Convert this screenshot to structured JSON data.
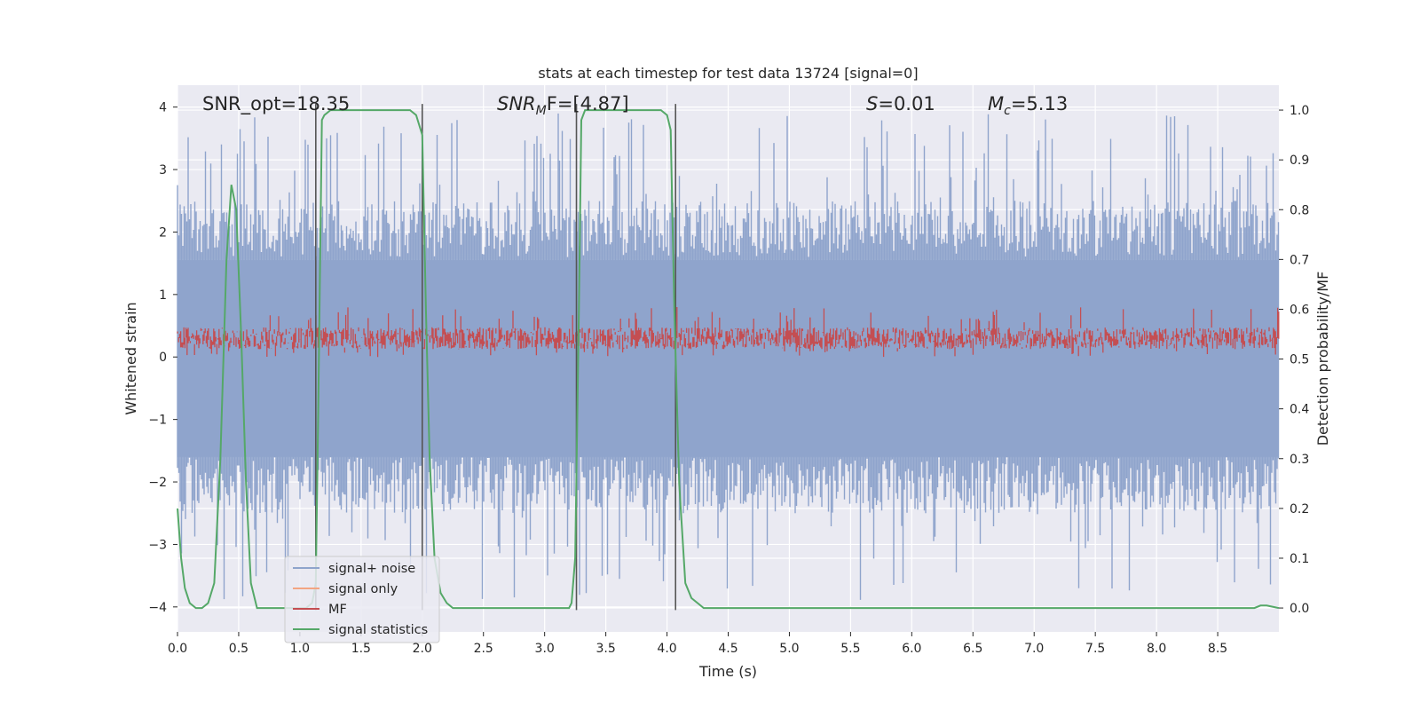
{
  "chart_data": {
    "type": "line",
    "title": "stats at each timestep for test data 13724 [signal=0]",
    "xlabel": "Time (s)",
    "ylabel_left": "Whitened strain",
    "ylabel_right": "Detection probability/MF",
    "xlim": [
      0.0,
      9.0
    ],
    "ylim_left": [
      -4.4,
      4.35
    ],
    "ylim_right": [
      -0.048,
      1.05
    ],
    "x_ticks": [
      "0.0",
      "0.5",
      "1.0",
      "1.5",
      "2.0",
      "2.5",
      "3.0",
      "3.5",
      "4.0",
      "4.5",
      "5.0",
      "5.5",
      "6.0",
      "6.5",
      "7.0",
      "7.5",
      "8.0",
      "8.5"
    ],
    "y_ticks_left": [
      "−4",
      "−3",
      "−2",
      "−1",
      "0",
      "1",
      "2",
      "3",
      "4"
    ],
    "y_ticks_right": [
      "0.0",
      "0.1",
      "0.2",
      "0.3",
      "0.4",
      "0.5",
      "0.6",
      "0.7",
      "0.8",
      "0.9",
      "1.0"
    ],
    "grid": true,
    "annotations": {
      "snr_opt": "SNR_opt=18.35",
      "snr_mf_prefix": "SNR",
      "snr_mf_sub": "M",
      "snr_mf_suffix": "F=[4.87]",
      "s_prefix": "S",
      "s_suffix": "=0.01",
      "mc_prefix": "M",
      "mc_sub": "c",
      "mc_suffix": "=5.13"
    },
    "vertical_lines": [
      1.13,
      2.0,
      3.26,
      4.07
    ],
    "series": [
      {
        "name": "signal+ noise",
        "color": "#8fa4cc",
        "axis": "left",
        "summary": "noise band roughly -2.5 to 2.5 with spikes to about ±3.9"
      },
      {
        "name": "signal only",
        "color": "#f3a582",
        "axis": "left",
        "values": []
      },
      {
        "name": "MF",
        "color": "#c44e52",
        "axis": "left",
        "summary": "noisy band around 0.3, range about 0.0 to 0.7"
      },
      {
        "name": "signal statistics",
        "color": "#55a868",
        "axis": "right",
        "x": [
          0.0,
          0.03,
          0.06,
          0.1,
          0.15,
          0.2,
          0.25,
          0.3,
          0.35,
          0.4,
          0.44,
          0.48,
          0.52,
          0.56,
          0.6,
          0.65,
          0.7,
          0.8,
          0.9,
          1.0,
          1.05,
          1.1,
          1.13,
          1.15,
          1.18,
          1.2,
          1.25,
          1.3,
          1.4,
          1.6,
          1.8,
          1.9,
          1.95,
          2.0,
          2.03,
          2.06,
          2.1,
          2.15,
          2.2,
          2.25,
          2.3,
          2.5,
          2.8,
          3.0,
          3.1,
          3.2,
          3.22,
          3.25,
          3.28,
          3.3,
          3.33,
          3.4,
          3.6,
          3.8,
          3.95,
          4.0,
          4.03,
          4.06,
          4.1,
          4.15,
          4.2,
          4.25,
          4.3,
          4.4,
          4.6,
          5.0,
          6.0,
          7.0,
          8.0,
          8.7,
          8.75,
          8.8,
          8.85,
          8.9,
          9.0
        ],
        "values": [
          0.2,
          0.1,
          0.04,
          0.01,
          0.0,
          0.0,
          0.01,
          0.05,
          0.3,
          0.7,
          0.85,
          0.8,
          0.55,
          0.25,
          0.05,
          0.0,
          0.0,
          0.0,
          0.0,
          0.0,
          0.0,
          0.01,
          0.05,
          0.4,
          0.98,
          0.99,
          1.0,
          1.0,
          1.0,
          1.0,
          1.0,
          1.0,
          0.99,
          0.95,
          0.6,
          0.3,
          0.1,
          0.03,
          0.01,
          0.0,
          0.0,
          0.0,
          0.0,
          0.0,
          0.0,
          0.0,
          0.01,
          0.1,
          0.6,
          0.98,
          1.0,
          1.0,
          1.0,
          1.0,
          1.0,
          0.99,
          0.96,
          0.6,
          0.25,
          0.05,
          0.02,
          0.01,
          0.0,
          0.0,
          0.0,
          0.0,
          0.0,
          0.0,
          0.0,
          0.0,
          0.0,
          0.0,
          0.005,
          0.005,
          0.0
        ]
      }
    ],
    "legend": {
      "position": "lower-left",
      "entries": [
        "signal+ noise",
        "signal only",
        "MF",
        "signal statistics"
      ]
    }
  }
}
